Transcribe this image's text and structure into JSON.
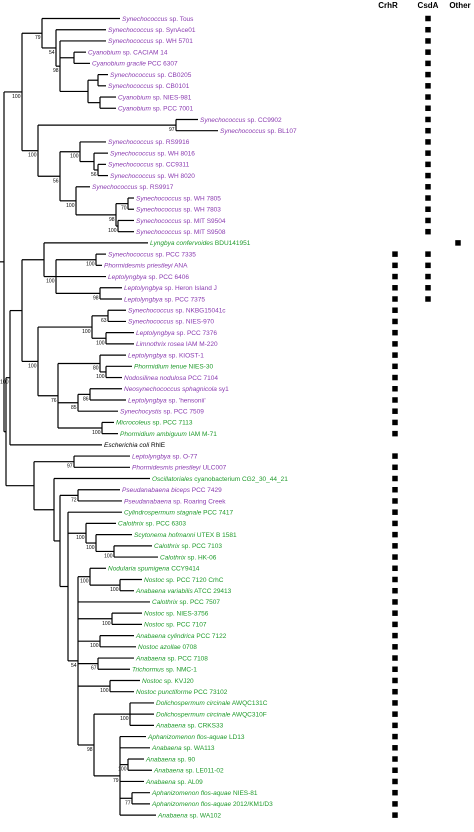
{
  "columns": [
    "CrhR",
    "CsdA",
    "Other"
  ],
  "colors": {
    "purple": "#8a3bb0",
    "green": "#1f9a2b",
    "black": "#000000",
    "line": "#000000",
    "marker": "#000000"
  },
  "taxa": [
    {
      "it": "Synechococcus",
      "rest": " sp. Tous",
      "c": "purple",
      "m": [
        0,
        1,
        0
      ]
    },
    {
      "it": "Synechococcus",
      "rest": " sp. SynAce01",
      "c": "purple",
      "m": [
        0,
        1,
        0
      ]
    },
    {
      "it": "Synechococcus",
      "rest": " sp. WH 5701",
      "c": "purple",
      "m": [
        0,
        1,
        0
      ]
    },
    {
      "it": "Cyanobium",
      "rest": " sp. CACIAM 14",
      "c": "purple",
      "m": [
        0,
        1,
        0
      ]
    },
    {
      "it": "Cyanobium gracile",
      "rest": " PCC 6307",
      "c": "purple",
      "m": [
        0,
        1,
        0
      ]
    },
    {
      "it": "Synechococcus",
      "rest": " sp. CB0205",
      "c": "purple",
      "m": [
        0,
        1,
        0
      ]
    },
    {
      "it": "Synechococcus",
      "rest": " sp. CB0101",
      "c": "purple",
      "m": [
        0,
        1,
        0
      ]
    },
    {
      "it": "Cyanobium",
      "rest": " sp. NIES-981",
      "c": "purple",
      "m": [
        0,
        1,
        0
      ]
    },
    {
      "it": "Cyanobium",
      "rest": " sp. PCC 7001",
      "c": "purple",
      "m": [
        0,
        1,
        0
      ]
    },
    {
      "it": "Synechococcus",
      "rest": " sp. CC9902",
      "c": "purple",
      "m": [
        0,
        1,
        0
      ]
    },
    {
      "it": "Synechococcus",
      "rest": " sp. BL107",
      "c": "purple",
      "m": [
        0,
        1,
        0
      ]
    },
    {
      "it": "Synechococcus",
      "rest": " sp. RS9916",
      "c": "purple",
      "m": [
        0,
        1,
        0
      ]
    },
    {
      "it": "Synechococcus",
      "rest": " sp. WH 8016",
      "c": "purple",
      "m": [
        0,
        1,
        0
      ]
    },
    {
      "it": "Synechococcus",
      "rest": " sp. CC9311",
      "c": "purple",
      "m": [
        0,
        1,
        0
      ]
    },
    {
      "it": "Synechococcus",
      "rest": " sp. WH 8020",
      "c": "purple",
      "m": [
        0,
        1,
        0
      ]
    },
    {
      "it": "Synechococcus",
      "rest": " sp. RS9917",
      "c": "purple",
      "m": [
        0,
        1,
        0
      ]
    },
    {
      "it": "Synechococcus",
      "rest": " sp. WH 7805",
      "c": "purple",
      "m": [
        0,
        1,
        0
      ]
    },
    {
      "it": "Synechococcus",
      "rest": " sp. WH 7803",
      "c": "purple",
      "m": [
        0,
        1,
        0
      ]
    },
    {
      "it": "Synechococcus",
      "rest": " sp. MIT S9504",
      "c": "purple",
      "m": [
        0,
        1,
        0
      ]
    },
    {
      "it": "Synechococcus",
      "rest": " sp. MIT S9508",
      "c": "purple",
      "m": [
        0,
        1,
        0
      ]
    },
    {
      "it": "Lyngbya confervoides",
      "rest": " BDU141951",
      "c": "green",
      "m": [
        0,
        0,
        1
      ]
    },
    {
      "it": "Synechococcus",
      "rest": " sp. PCC 7335",
      "c": "purple",
      "m": [
        1,
        1,
        0
      ]
    },
    {
      "it": "Phormidesmis priestleyi",
      "rest": " ANA",
      "c": "purple",
      "m": [
        1,
        1,
        0
      ]
    },
    {
      "it": "Leptolyngbya",
      "rest": " sp. PCC 6406",
      "c": "purple",
      "m": [
        1,
        1,
        0
      ]
    },
    {
      "it": "Leptolyngbya",
      "rest": " sp. Heron Island J",
      "c": "purple",
      "m": [
        1,
        1,
        0
      ]
    },
    {
      "it": "Leptolyngbya",
      "rest": " sp. PCC 7375",
      "c": "purple",
      "m": [
        1,
        1,
        0
      ]
    },
    {
      "it": "Synechococcus",
      "rest": " sp. NKBG15041c",
      "c": "purple",
      "m": [
        1,
        0,
        0
      ]
    },
    {
      "it": "Synechococcus",
      "rest": " sp. NIES-970",
      "c": "purple",
      "m": [
        1,
        0,
        0
      ]
    },
    {
      "it": "Leptolyngbya",
      "rest": " sp. PCC 7376",
      "c": "purple",
      "m": [
        1,
        0,
        0
      ]
    },
    {
      "it": "Limnothrix rosea",
      "rest": " IAM M-220",
      "c": "purple",
      "m": [
        1,
        0,
        0
      ]
    },
    {
      "it": "Leptolyngbya",
      "rest": " sp. KIOST-1",
      "c": "purple",
      "m": [
        1,
        0,
        0
      ]
    },
    {
      "it": "Phormidium tenue",
      "rest": " NIES-30",
      "c": "green",
      "m": [
        1,
        0,
        0
      ]
    },
    {
      "it": "Nodosilinea nodulosa",
      "rest": " PCC 7104",
      "c": "purple",
      "m": [
        1,
        0,
        0
      ]
    },
    {
      "it": "Neosynechococcus sphagnicola",
      "rest": " sy1",
      "c": "purple",
      "m": [
        1,
        0,
        0
      ]
    },
    {
      "it": "Leptolyngbya",
      "rest": " sp. 'hensonii'",
      "c": "purple",
      "m": [
        1,
        0,
        0
      ]
    },
    {
      "it": "Synechocystis",
      "rest": " sp. PCC 7509",
      "c": "purple",
      "m": [
        1,
        0,
        0
      ]
    },
    {
      "it": "Microcoleus",
      "rest": " sp. PCC 7113",
      "c": "green",
      "m": [
        1,
        0,
        0
      ]
    },
    {
      "it": "Phormidium ambiguum",
      "rest": " IAM M-71",
      "c": "green",
      "m": [
        1,
        0,
        0
      ]
    },
    {
      "it": "Escherichia coli",
      "rest": " RhlE",
      "c": "black",
      "m": [
        0,
        0,
        0
      ]
    },
    {
      "it": "Leptolyngbya",
      "rest": " sp. O-77",
      "c": "purple",
      "m": [
        1,
        0,
        0
      ]
    },
    {
      "it": "Phormidesmis priestleyi",
      "rest": " ULC007",
      "c": "purple",
      "m": [
        1,
        0,
        0
      ]
    },
    {
      "it": "Oscillatoriales",
      "rest": " cyanobacterium CG2_30_44_21",
      "c": "green",
      "m": [
        1,
        0,
        0
      ]
    },
    {
      "it": "Pseudanabaena biceps",
      "rest": " PCC 7429",
      "c": "purple",
      "m": [
        1,
        0,
        0
      ]
    },
    {
      "it": "Pseudanabaena",
      "rest": " sp. Roaring Creek",
      "c": "purple",
      "m": [
        1,
        0,
        0
      ]
    },
    {
      "it": "Cylindrospermum stagnale",
      "rest": " PCC 7417",
      "c": "green",
      "m": [
        1,
        0,
        0
      ]
    },
    {
      "it": "Calothrix",
      "rest": " sp. PCC 6303",
      "c": "green",
      "m": [
        1,
        0,
        0
      ]
    },
    {
      "it": "Scytonema hofmanni",
      "rest": " UTEX B 1581",
      "c": "green",
      "m": [
        1,
        0,
        0
      ]
    },
    {
      "it": "Calothrix",
      "rest": " sp. PCC 7103",
      "c": "green",
      "m": [
        1,
        0,
        0
      ]
    },
    {
      "it": "Calothrix",
      "rest": " sp. HK-06",
      "c": "green",
      "m": [
        1,
        0,
        0
      ]
    },
    {
      "it": "Nodularia spumigena",
      "rest": " CCY9414",
      "c": "green",
      "m": [
        1,
        0,
        0
      ]
    },
    {
      "it": "Nostoc",
      "rest": " sp. PCC 7120 CrhC",
      "c": "green",
      "m": [
        1,
        0,
        0
      ]
    },
    {
      "it": "Anabaena variabilis",
      "rest": " ATCC 29413",
      "c": "green",
      "m": [
        1,
        0,
        0
      ]
    },
    {
      "it": "Calothrix",
      "rest": " sp. PCC 7507",
      "c": "green",
      "m": [
        1,
        0,
        0
      ]
    },
    {
      "it": "Nostoc",
      "rest": " sp. NIES-3756",
      "c": "green",
      "m": [
        1,
        0,
        0
      ]
    },
    {
      "it": "Nostoc",
      "rest": " sp. PCC 7107",
      "c": "green",
      "m": [
        1,
        0,
        0
      ]
    },
    {
      "it": "Anabaena cylindrica",
      "rest": " PCC 7122",
      "c": "green",
      "m": [
        1,
        0,
        0
      ]
    },
    {
      "it": "Nostoc azollae",
      "rest": " 0708",
      "c": "green",
      "m": [
        1,
        0,
        0
      ]
    },
    {
      "it": "Anabaena",
      "rest": " sp. PCC 7108",
      "c": "green",
      "m": [
        1,
        0,
        0
      ]
    },
    {
      "it": "Trichormus",
      "rest": " sp. NMC-1",
      "c": "green",
      "m": [
        1,
        0,
        0
      ]
    },
    {
      "it": "Nostoc",
      "rest": " sp. KVJ20",
      "c": "green",
      "m": [
        1,
        0,
        0
      ]
    },
    {
      "it": "Nostoc punctiforme",
      "rest": " PCC 73102",
      "c": "green",
      "m": [
        1,
        0,
        0
      ]
    },
    {
      "it": "Dolichospermum circinale",
      "rest": " AWQC131C",
      "c": "green",
      "m": [
        1,
        0,
        0
      ]
    },
    {
      "it": "Dolichospermum circinale",
      "rest": " AWQC310F",
      "c": "green",
      "m": [
        1,
        0,
        0
      ]
    },
    {
      "it": "Anabaena",
      "rest": " sp. CRKS33",
      "c": "green",
      "m": [
        1,
        0,
        0
      ]
    },
    {
      "it": "Aphanizomenon flos-aquae",
      "rest": " LD13",
      "c": "green",
      "m": [
        1,
        0,
        0
      ]
    },
    {
      "it": "Anabaena",
      "rest": " sp. WA113",
      "c": "green",
      "m": [
        1,
        0,
        0
      ]
    },
    {
      "it": "Anabaena",
      "rest": " sp. 90",
      "c": "green",
      "m": [
        1,
        0,
        0
      ]
    },
    {
      "it": "Anabaena",
      "rest": " sp. LE011-02",
      "c": "green",
      "m": [
        1,
        0,
        0
      ]
    },
    {
      "it": "Anabaena",
      "rest": " sp. AL09",
      "c": "green",
      "m": [
        1,
        0,
        0
      ]
    },
    {
      "it": "Aphanizomenon flos-aquae",
      "rest": " NIES-81",
      "c": "green",
      "m": [
        1,
        0,
        0
      ]
    },
    {
      "it": "Aphanizomenon flos-aquae",
      "rest": " 2012/KM1/D3",
      "c": "green",
      "m": [
        1,
        0,
        0
      ]
    },
    {
      "it": "Anabaena",
      "rest": " sp. WA102",
      "c": "green",
      "m": [
        1,
        0,
        0
      ]
    }
  ],
  "bootstrap": [
    "98",
    "54",
    "79",
    "97",
    "56",
    "100",
    "70",
    "100",
    "98",
    "100",
    "56",
    "100",
    "100",
    "100",
    "98",
    "100",
    "63",
    "100",
    "100",
    "100",
    "80",
    "86",
    "85",
    "100",
    "76",
    "100",
    "100",
    "97",
    "72",
    "100",
    "100",
    "100",
    "100",
    "100",
    "100",
    "100",
    "67",
    "100",
    "100",
    "100",
    "77",
    "79"
  ]
}
